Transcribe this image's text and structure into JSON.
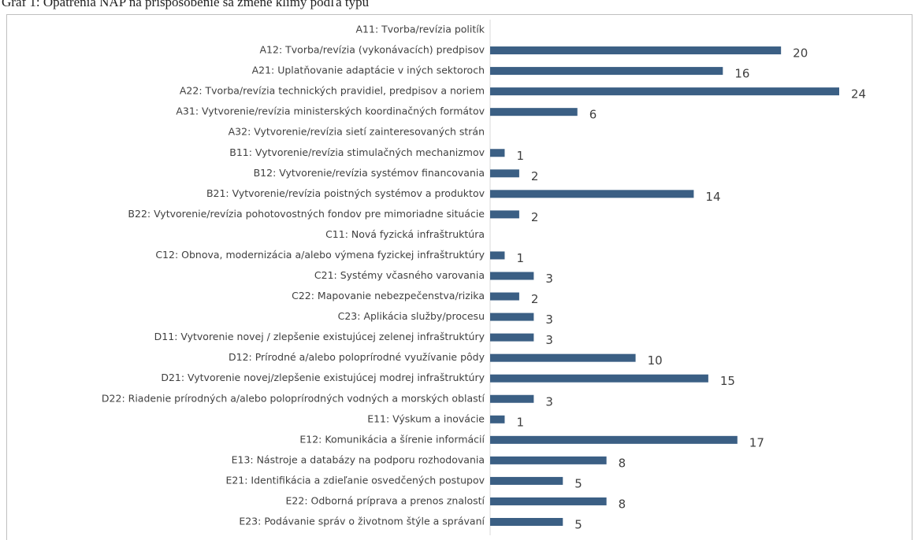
{
  "chart_data": {
    "type": "bar",
    "orientation": "horizontal",
    "title": "Graf 1: Opatrenia NAP na prispôsobenie sa zmene klímy podľa typu",
    "categories": [
      "A11: Tvorba/revízia politík",
      "A12: Tvorba/revízia (vykonávacích) predpisov",
      "A21: Uplatňovanie adaptácie v iných sektoroch",
      "A22: Tvorba/revízia technických pravidiel, predpisov a noriem",
      "A31: Vytvorenie/revízia ministerských koordinačných formátov",
      "A32: Vytvorenie/revízia sietí zainteresovaných strán",
      "B11: Vytvorenie/revízia stimulačných mechanizmov",
      "B12: Vytvorenie/revízia systémov financovania",
      "B21: Vytvorenie/revízia poistných systémov a produktov",
      "B22: Vytvorenie/revízia pohotovostných fondov pre mimoriadne situácie",
      "C11: Nová fyzická infraštruktúra",
      "C12: Obnova, modernizácia a/alebo výmena fyzickej infraštruktúry",
      "C21: Systémy včasného varovania",
      "C22: Mapovanie nebezpečenstva/rizika",
      "C23: Aplikácia služby/procesu",
      "D11: Vytvorenie novej / zlepšenie existujúcej zelenej infraštruktúry",
      "D12: Prírodné a/alebo poloprírodné využívanie pôdy",
      "D21: Vytvorenie novej/zlepšenie existujúcej modrej infraštruktúry",
      "D22: Riadenie prírodných a/alebo poloprírodných vodných a morských oblastí",
      "E11: Výskum a inovácie",
      "E12: Komunikácia a šírenie informácií",
      "E13: Nástroje a databázy na podporu rozhodovania",
      "E21: Identifikácia a zdieľanie osvedčených postupov",
      "E22: Odborná príprava a prenos znalostí",
      "E23: Podávanie správ o životnom štýle a správaní"
    ],
    "values": [
      null,
      20,
      16,
      24,
      6,
      null,
      1,
      2,
      14,
      2,
      null,
      1,
      3,
      2,
      3,
      3,
      10,
      15,
      3,
      1,
      17,
      8,
      5,
      8,
      5
    ],
    "color": "#3b5f84",
    "xlim": [
      0,
      24
    ]
  }
}
